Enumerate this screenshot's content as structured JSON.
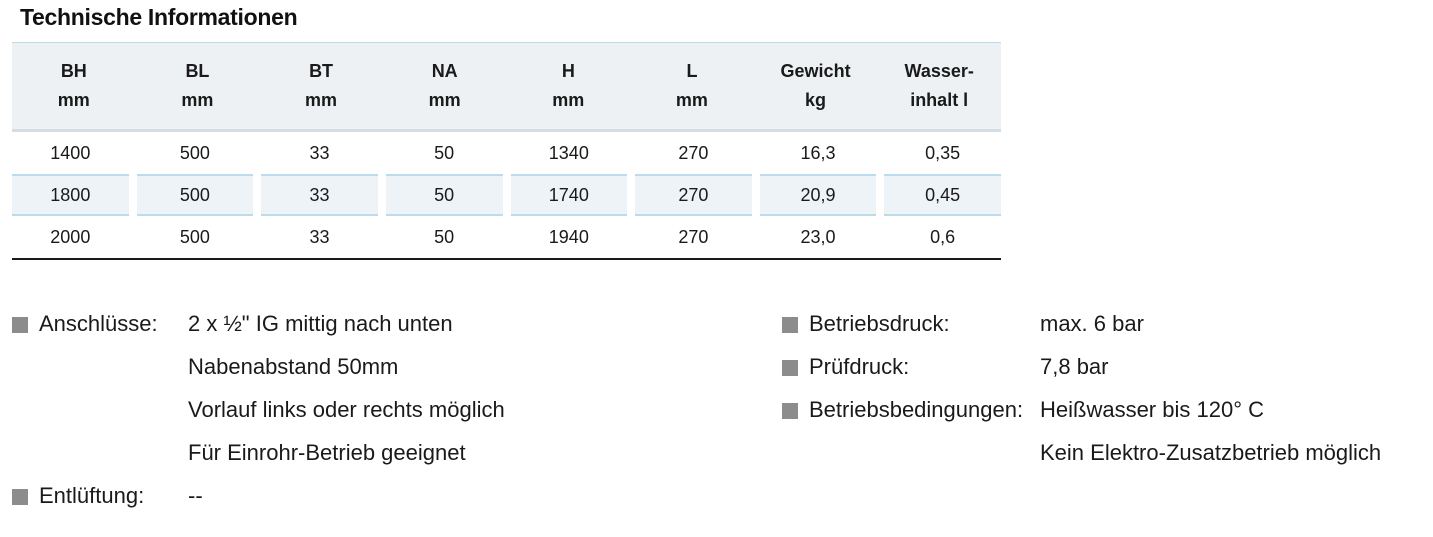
{
  "title": "Technische Informationen",
  "table": {
    "headers": [
      {
        "line1": "BH",
        "line2": "mm"
      },
      {
        "line1": "BL",
        "line2": "mm"
      },
      {
        "line1": "BT",
        "line2": "mm"
      },
      {
        "line1": "NA",
        "line2": "mm"
      },
      {
        "line1": "H",
        "line2": "mm"
      },
      {
        "line1": "L",
        "line2": "mm"
      },
      {
        "line1": "Gewicht",
        "line2": "kg"
      },
      {
        "line1": "Wasser-",
        "line2": "inhalt l"
      }
    ],
    "rows": [
      [
        "1400",
        "500",
        "33",
        "50",
        "1340",
        "270",
        "16,3",
        "0,35"
      ],
      [
        "1800",
        "500",
        "33",
        "50",
        "1740",
        "270",
        "20,9",
        "0,45"
      ],
      [
        "2000",
        "500",
        "33",
        "50",
        "1940",
        "270",
        "23,0",
        "0,6"
      ]
    ]
  },
  "specs_left": [
    {
      "label": "Anschlüsse:",
      "values": [
        "2 x ½\" IG mittig nach unten",
        "Nabenabstand 50mm",
        "Vorlauf links oder rechts möglich",
        "Für Einrohr-Betrieb geeignet"
      ]
    },
    {
      "label": "Entlüftung:",
      "values": [
        "--"
      ]
    }
  ],
  "specs_right": [
    {
      "label": "Betriebsdruck:",
      "values": [
        "max. 6 bar"
      ]
    },
    {
      "label": "Prüfdruck:",
      "values": [
        "7,8 bar"
      ]
    },
    {
      "label": "Betriebsbedingungen:",
      "values": [
        "Heißwasser bis 120° C",
        "Kein Elektro-Zusatzbetrieb möglich"
      ]
    }
  ],
  "colors": {
    "bullet": "#8c8c8c",
    "header_bg": "#eef1f3",
    "row_shade": "#eef3f8",
    "rule_blue": "#bcdcee"
  }
}
